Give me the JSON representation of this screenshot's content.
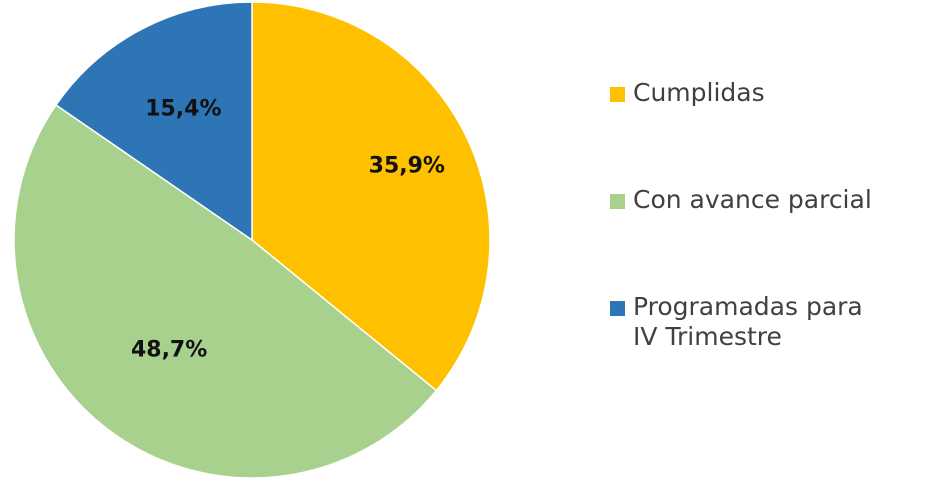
{
  "chart_data": {
    "type": "pie",
    "series": [
      {
        "name": "Cumplidas",
        "value": 35.9,
        "label": "35,9%",
        "color": "#FFC000"
      },
      {
        "name": "Con avance parcial",
        "value": 48.7,
        "label": "48,7%",
        "color": "#A9D18E"
      },
      {
        "name": "Programadas para\nIV Trimestre",
        "value": 15.4,
        "label": "15,4%",
        "color": "#2E75B6"
      }
    ],
    "start_angle": "12 o'clock",
    "direction": "clockwise",
    "legend_position": "right"
  }
}
